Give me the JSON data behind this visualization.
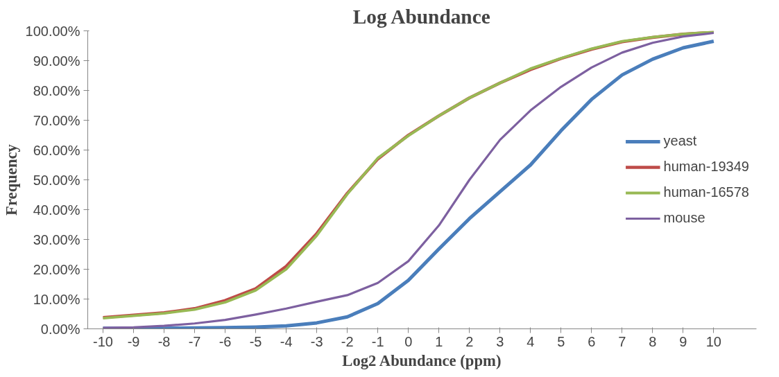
{
  "chart_data": {
    "type": "line",
    "title": "Log Abundance",
    "xlabel": "Log2 Abundance (ppm)",
    "ylabel": "Frequency",
    "categories": [
      "-10",
      "-9",
      "-8",
      "-7",
      "-6",
      "-5",
      "-4",
      "-3",
      "-2",
      "-1",
      "0",
      "1",
      "2",
      "3",
      "4",
      "5",
      "6",
      "7",
      "8",
      "9",
      "10"
    ],
    "series": [
      {
        "name": "yeast",
        "color": "#4a7ebb",
        "values": [
          0.2,
          0.2,
          0.2,
          0.3,
          0.4,
          0.6,
          1.0,
          2.0,
          4.0,
          8.5,
          16.3,
          26.8,
          37,
          46,
          55,
          66.5,
          77,
          85.2,
          90.5,
          94.3,
          96.5
        ]
      },
      {
        "name": "human-19349",
        "color": "#be4b48",
        "values": [
          3.8,
          4.6,
          5.4,
          6.8,
          9.5,
          13.5,
          21,
          32,
          45.5,
          57,
          65,
          71.5,
          77.5,
          82.5,
          87,
          90.7,
          93.8,
          96.3,
          97.8,
          98.9,
          99.5
        ]
      },
      {
        "name": "human-16578",
        "color": "#98b954",
        "values": [
          3.6,
          4.4,
          5.2,
          6.5,
          8.9,
          12.9,
          20,
          31.3,
          45.2,
          57.3,
          64.8,
          71.5,
          77.5,
          82.5,
          87.3,
          90.8,
          94,
          96.5,
          97.9,
          98.9,
          99.6
        ]
      },
      {
        "name": "mouse",
        "color": "#7d60a0",
        "values": [
          0.3,
          0.5,
          1.0,
          1.8,
          3.0,
          4.8,
          6.8,
          9.1,
          11.3,
          15.4,
          22.7,
          34.7,
          50,
          63.4,
          73.3,
          81.2,
          87.7,
          92.7,
          96,
          98.1,
          99.3
        ]
      }
    ],
    "ylim": [
      0,
      100
    ],
    "yticks": [
      {
        "value": 0,
        "label": "0.00%"
      },
      {
        "value": 10,
        "label": "10.00%"
      },
      {
        "value": 20,
        "label": "20.00%"
      },
      {
        "value": 30,
        "label": "30.00%"
      },
      {
        "value": 40,
        "label": "40.00%"
      },
      {
        "value": 50,
        "label": "50.00%"
      },
      {
        "value": 60,
        "label": "60.00%"
      },
      {
        "value": 70,
        "label": "70.00%"
      },
      {
        "value": 80,
        "label": "80.00%"
      },
      {
        "value": 90,
        "label": "90.00%"
      },
      {
        "value": 100,
        "label": "100.00%"
      }
    ],
    "grid": false,
    "legend": "right",
    "marker": "none",
    "line_style": "solid"
  }
}
